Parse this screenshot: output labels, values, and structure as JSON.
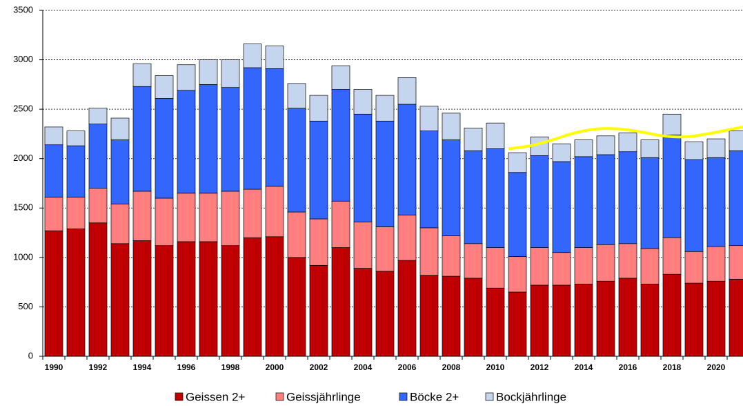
{
  "chart_data": {
    "type": "stacked_bar",
    "categories": [
      "1990",
      null,
      "1992",
      null,
      "1994",
      null,
      "1996",
      null,
      "1998",
      null,
      "2000",
      null,
      "2002",
      null,
      "2004",
      null,
      "2006",
      null,
      "2008",
      null,
      "2010",
      null,
      "2012",
      null,
      "2014",
      null,
      "2016",
      null,
      "2018",
      null,
      "2020",
      null
    ],
    "series": [
      {
        "name": "Geissen 2+",
        "color": "#c00000",
        "values": [
          1270,
          1290,
          1350,
          1140,
          1170,
          1120,
          1160,
          1160,
          1120,
          1200,
          1210,
          1000,
          920,
          1100,
          890,
          860,
          970,
          820,
          810,
          790,
          690,
          650,
          720,
          720,
          730,
          760,
          790,
          730,
          830,
          740,
          760,
          780
        ]
      },
      {
        "name": "Geissjährlinge",
        "color": "#ff7f7f",
        "values": [
          340,
          320,
          350,
          400,
          500,
          480,
          490,
          490,
          550,
          490,
          510,
          460,
          470,
          470,
          470,
          450,
          460,
          480,
          410,
          350,
          410,
          360,
          380,
          330,
          370,
          370,
          350,
          360,
          370,
          320,
          350,
          340
        ]
      },
      {
        "name": "Böcke 2+",
        "color": "#3366ff",
        "values": [
          530,
          520,
          650,
          650,
          1060,
          1010,
          1040,
          1100,
          1050,
          1230,
          1190,
          1050,
          990,
          1130,
          1090,
          1070,
          1120,
          980,
          970,
          940,
          1000,
          850,
          930,
          920,
          920,
          910,
          930,
          920,
          1040,
          930,
          900,
          960
        ]
      },
      {
        "name": "Bockjährlinge",
        "color": "#c5d5ee",
        "values": [
          180,
          150,
          160,
          220,
          230,
          230,
          260,
          250,
          280,
          240,
          230,
          250,
          260,
          240,
          250,
          260,
          270,
          250,
          270,
          230,
          260,
          200,
          190,
          180,
          170,
          190,
          190,
          180,
          210,
          180,
          190,
          200
        ]
      }
    ],
    "trend": {
      "color": "#ffff00",
      "values": [
        null,
        null,
        null,
        null,
        null,
        null,
        null,
        null,
        null,
        null,
        null,
        null,
        null,
        null,
        null,
        null,
        null,
        null,
        null,
        null,
        null,
        2100,
        2130,
        2190,
        2260,
        2300,
        2300,
        2270,
        2230,
        2220,
        2250,
        2320
      ]
    },
    "ylim": [
      0,
      3500
    ],
    "yticks": [
      0,
      500,
      1000,
      1500,
      2000,
      2500,
      3000,
      3500
    ],
    "grid": true
  }
}
